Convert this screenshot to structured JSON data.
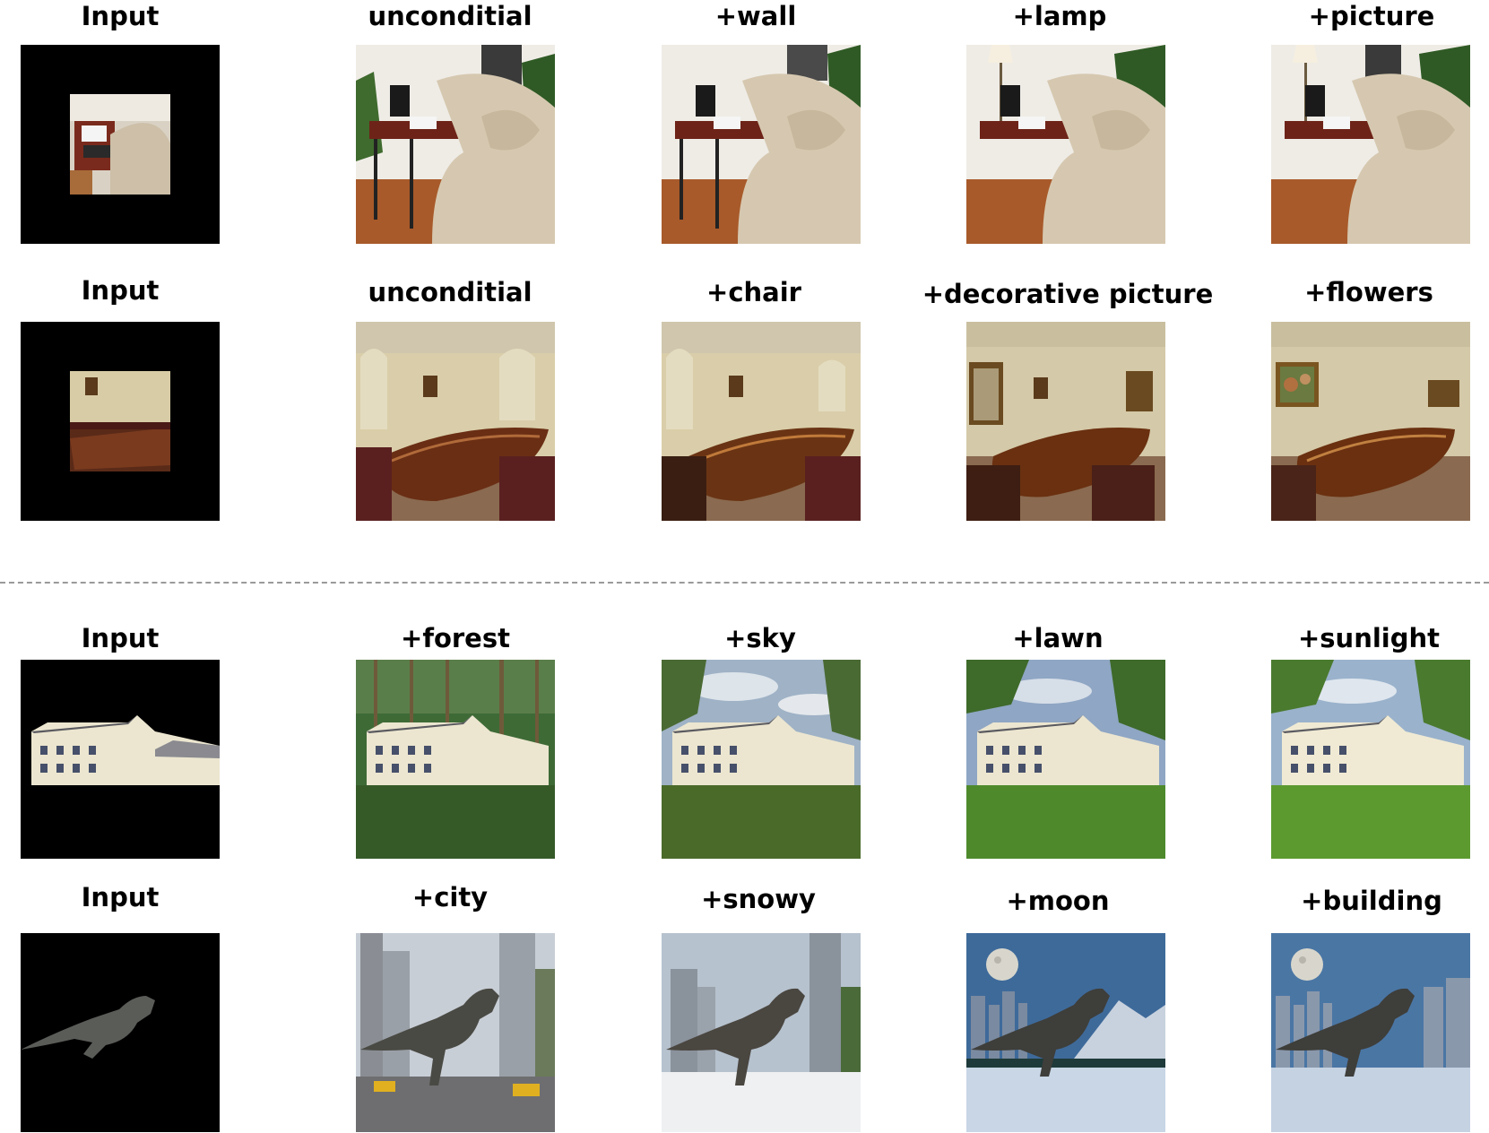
{
  "figure": {
    "rows": [
      {
        "section": "top",
        "labels": [
          "Input",
          "unconditial",
          "+wall",
          "+lamp",
          "+picture"
        ],
        "scene": "living room with sofa and desk"
      },
      {
        "section": "top",
        "labels": [
          "Input",
          "unconditial",
          "+chair",
          "+decorative picture",
          "+flowers"
        ],
        "scene": "conference room with long table"
      },
      {
        "section": "bottom",
        "labels": [
          "Input",
          "+forest",
          "+sky",
          "+lawn",
          "+sunlight"
        ],
        "scene": "white country house"
      },
      {
        "section": "bottom",
        "labels": [
          "Input",
          "+city",
          "+snowy",
          "+moon",
          "+building"
        ],
        "scene": "tyrannosaurus"
      }
    ]
  },
  "colors": {
    "background": "#ffffff",
    "mask_black": "#000000",
    "divider": "#9a9a9a"
  }
}
